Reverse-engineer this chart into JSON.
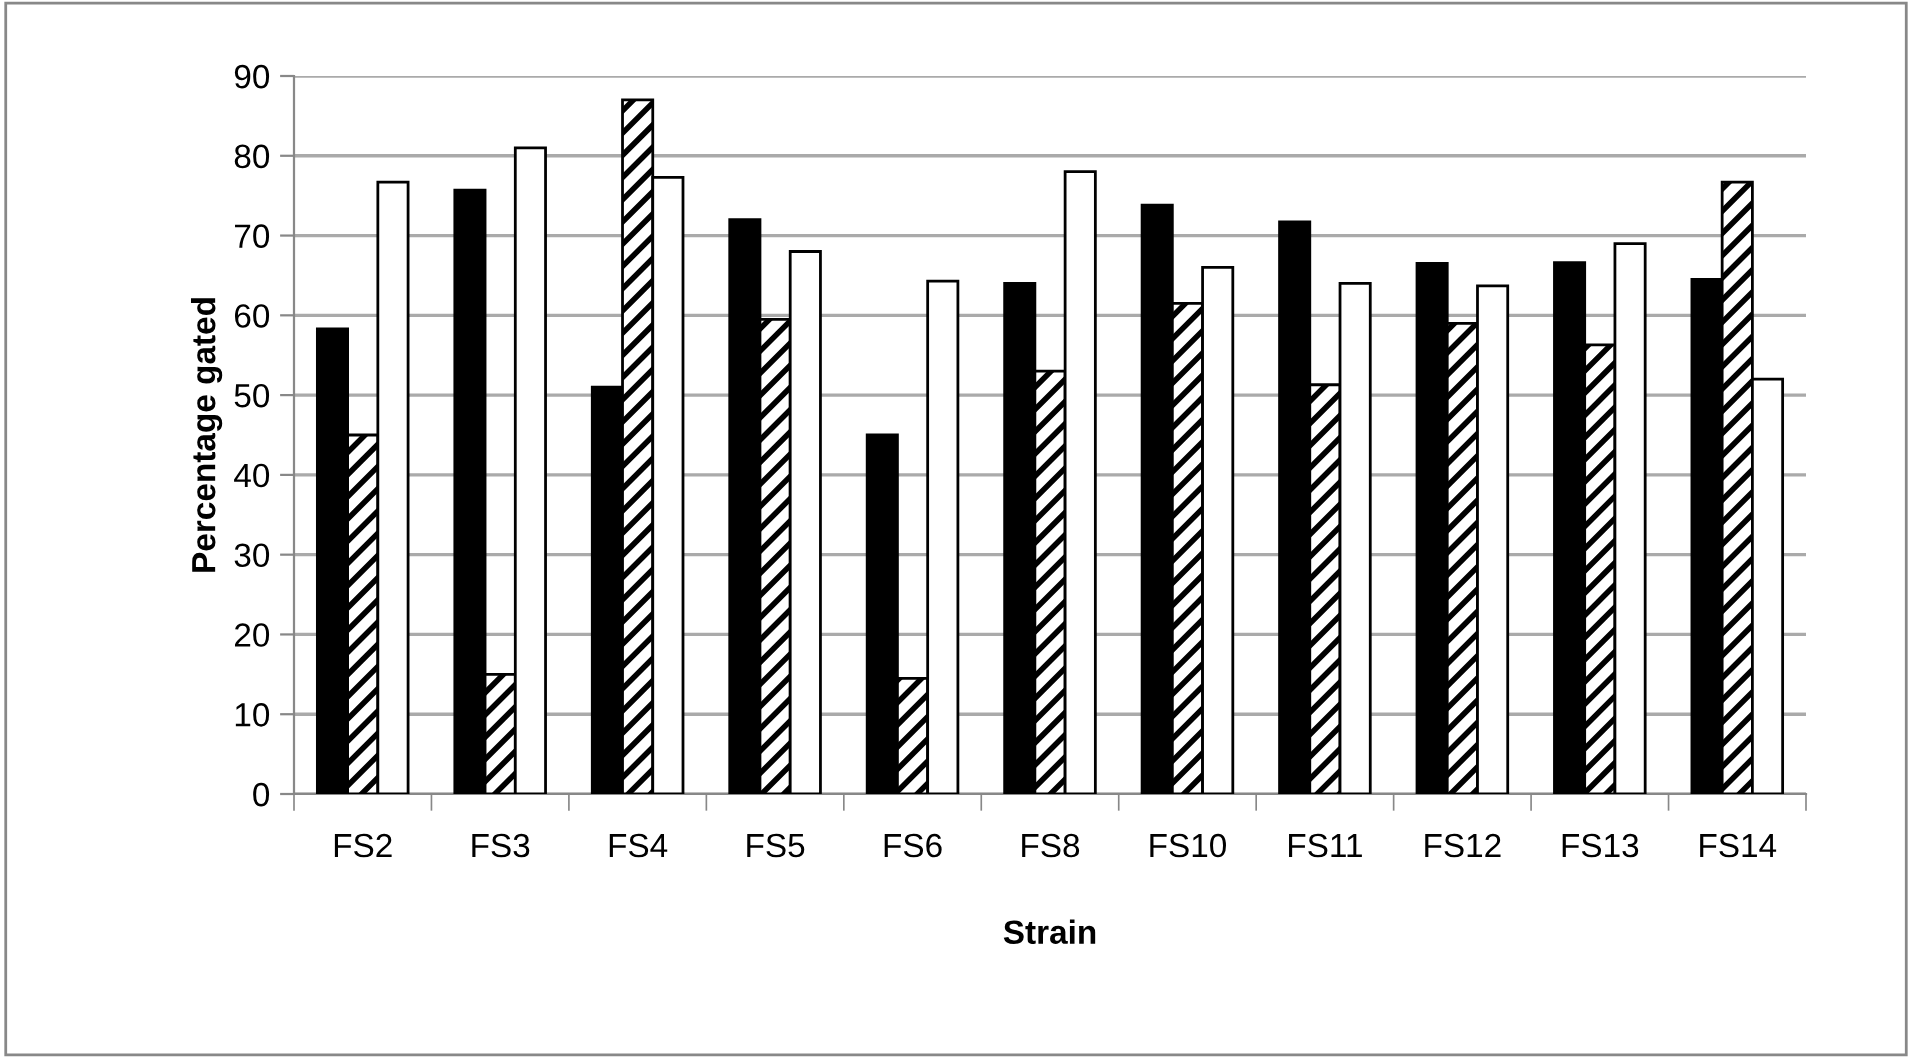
{
  "chart_data": {
    "type": "bar",
    "xlabel": "Strain",
    "ylabel": "Percentage gated",
    "categories": [
      "FS2",
      "FS3",
      "FS4",
      "FS5",
      "FS6",
      "FS8",
      "FS10",
      "FS11",
      "FS12",
      "FS13",
      "FS14"
    ],
    "series": [
      {
        "color": "#000000",
        "values": [
          58.3,
          75.7,
          51,
          72,
          45,
          64,
          73.8,
          71.7,
          66.5,
          66.6,
          64.5
        ]
      },
      {
        "color": "#000000",
        "values": [
          45,
          15,
          87,
          59.5,
          14.5,
          53,
          61.5,
          51.3,
          59,
          56.3,
          76.7
        ]
      },
      {
        "color": "#ffffff",
        "values": [
          76.7,
          81,
          77.3,
          68,
          64.3,
          78,
          66,
          64,
          63.7,
          69,
          52
        ]
      }
    ],
    "ylim": [
      0,
      90
    ],
    "yticks": [
      0,
      10,
      20,
      30,
      40,
      50,
      60,
      70,
      80,
      90
    ],
    "grid": "y",
    "legend": false
  }
}
